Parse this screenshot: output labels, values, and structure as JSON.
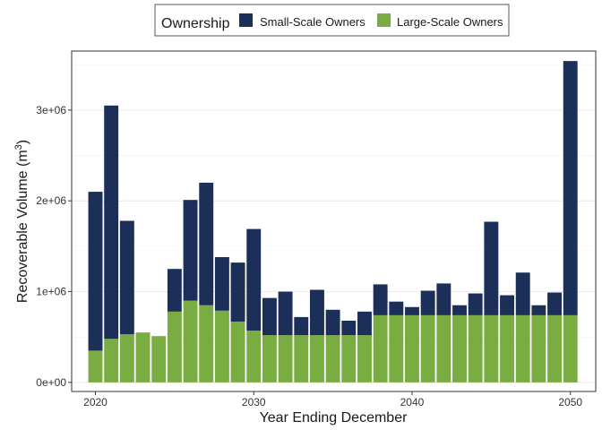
{
  "chart_data": {
    "type": "bar",
    "stacked": true,
    "xlabel": "Year Ending December",
    "ylabel": "Recoverable Volume (m",
    "ylabel_superscript": "3",
    "ylabel_close": ")",
    "xlim": [
      2018.5,
      2051.6
    ],
    "ylim": [
      -100000,
      3650000
    ],
    "x_ticks": [
      2020,
      2030,
      2040,
      2050
    ],
    "x_tick_labels": [
      "2020",
      "2030",
      "2040",
      "2050"
    ],
    "y_ticks": [
      0,
      1000000,
      2000000,
      3000000
    ],
    "y_tick_labels": [
      "0e+00",
      "1e+06",
      "2e+06",
      "3e+06"
    ],
    "grid": true,
    "legend": {
      "title": "Ownership",
      "placement": "top"
    },
    "x": [
      2020,
      2021,
      2022,
      2023,
      2024,
      2025,
      2026,
      2027,
      2028,
      2029,
      2030,
      2031,
      2032,
      2033,
      2034,
      2035,
      2036,
      2037,
      2038,
      2039,
      2040,
      2041,
      2042,
      2043,
      2044,
      2045,
      2046,
      2047,
      2048,
      2049,
      2050
    ],
    "series": [
      {
        "name": "Large-Scale Owners",
        "color": "#7aad41",
        "values": [
          350000,
          480000,
          530000,
          550000,
          510000,
          780000,
          900000,
          850000,
          790000,
          670000,
          570000,
          520000,
          520000,
          520000,
          520000,
          520000,
          520000,
          520000,
          740000,
          740000,
          740000,
          740000,
          740000,
          740000,
          740000,
          740000,
          740000,
          740000,
          740000,
          740000,
          740000
        ]
      },
      {
        "name": "Small-Scale Owners",
        "color": "#1c2f58",
        "values": [
          1750000,
          2570000,
          1250000,
          0,
          0,
          470000,
          1110000,
          1350000,
          590000,
          650000,
          1120000,
          410000,
          480000,
          200000,
          500000,
          280000,
          160000,
          260000,
          340000,
          150000,
          90000,
          270000,
          350000,
          110000,
          240000,
          1030000,
          220000,
          470000,
          110000,
          250000,
          2800000
        ]
      }
    ]
  }
}
